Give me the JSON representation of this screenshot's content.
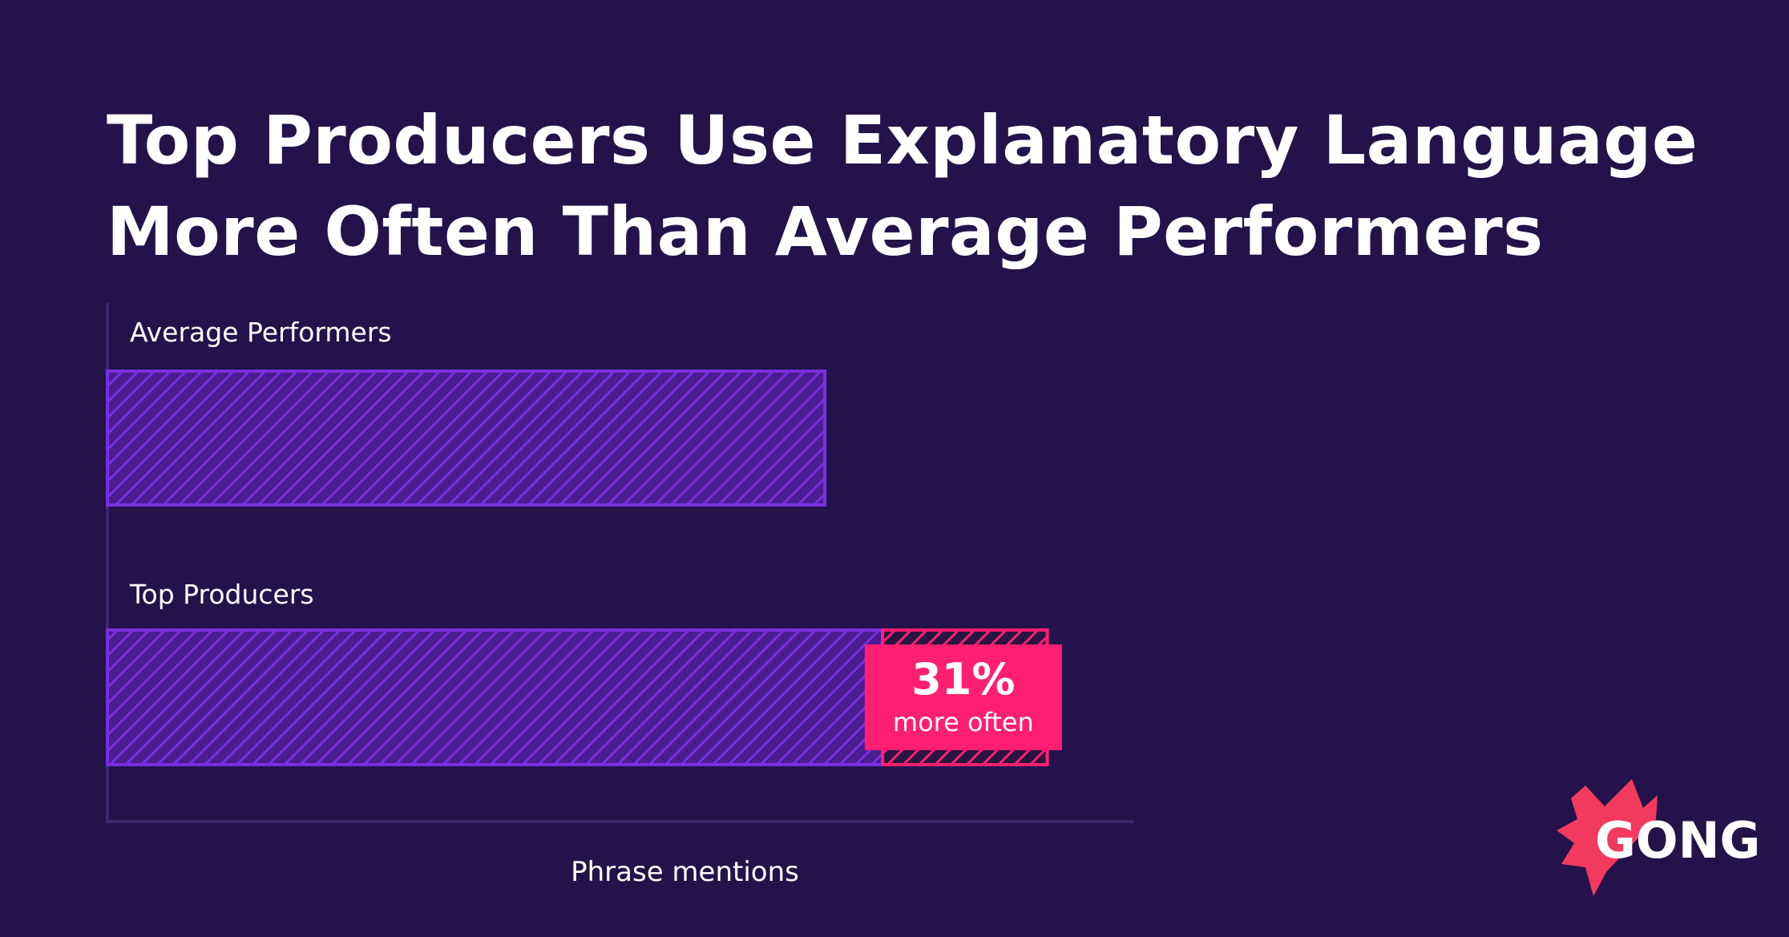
{
  "title_lines": [
    "Top Producers Use Explanatory Language",
    "More Often Than Average Performers"
  ],
  "brand": {
    "logo_text": "GONG",
    "logo_color": "#f23a5e"
  },
  "colors": {
    "background": "#23134a",
    "bar": "#7b2ee0",
    "highlight": "#ff1f72",
    "axis": "#3e2670"
  },
  "chart_data": {
    "type": "bar",
    "orientation": "horizontal",
    "categories": [
      "Average Performers",
      "Top Producers"
    ],
    "values": [
      1.0,
      1.31
    ],
    "base_reference": 1.0,
    "xlabel": "Phrase mentions",
    "ylabel": "",
    "xlim": [
      0,
      1.43
    ],
    "grid": false,
    "annotation": {
      "target": "Top Producers",
      "value": "31%",
      "text": "more often"
    }
  }
}
